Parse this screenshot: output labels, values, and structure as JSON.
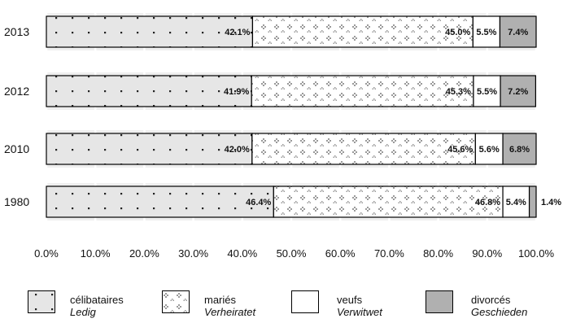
{
  "chart_data": {
    "type": "bar",
    "orientation": "horizontal",
    "stacked": true,
    "percent": true,
    "categories": [
      "2013",
      "2012",
      "2010",
      "1980"
    ],
    "series": [
      {
        "name": "célibataires",
        "name_sub": "Ledig",
        "values": [
          42.1,
          41.9,
          42.0,
          46.4
        ],
        "labels": [
          "42.1%",
          "41.9%",
          "42.0%",
          "46.4%"
        ],
        "fill": "#e6e6e6",
        "pattern": "dots"
      },
      {
        "name": "mariés",
        "name_sub": "Verheiratet",
        "values": [
          45.0,
          45.3,
          45.6,
          46.8
        ],
        "labels": [
          "45.0%",
          "45.3%",
          "45.6%",
          "46.8%"
        ],
        "fill": "#ffffff",
        "pattern": "crosses"
      },
      {
        "name": "veufs",
        "name_sub": "Verwitwet",
        "values": [
          5.5,
          5.5,
          5.6,
          5.4
        ],
        "labels": [
          "5.5%",
          "5.5%",
          "5.6%",
          "5.4%"
        ],
        "fill": "#ffffff",
        "pattern": "none"
      },
      {
        "name": "divorcés",
        "name_sub": "Geschieden",
        "values": [
          7.4,
          7.2,
          6.8,
          1.4
        ],
        "labels": [
          "7.4%",
          "7.2%",
          "6.8%",
          "1.4%"
        ],
        "fill": "#b0b0b0",
        "pattern": "none"
      }
    ],
    "xlim": [
      0,
      100
    ],
    "xticks": [
      "0.0%",
      "10.0%",
      "20.0%",
      "30.0%",
      "40.0%",
      "50.0%",
      "60.0%",
      "70.0%",
      "80.0%",
      "90.0%",
      "100.0%"
    ],
    "grid": true,
    "band_color": "#efefef",
    "legend_position": "bottom"
  }
}
